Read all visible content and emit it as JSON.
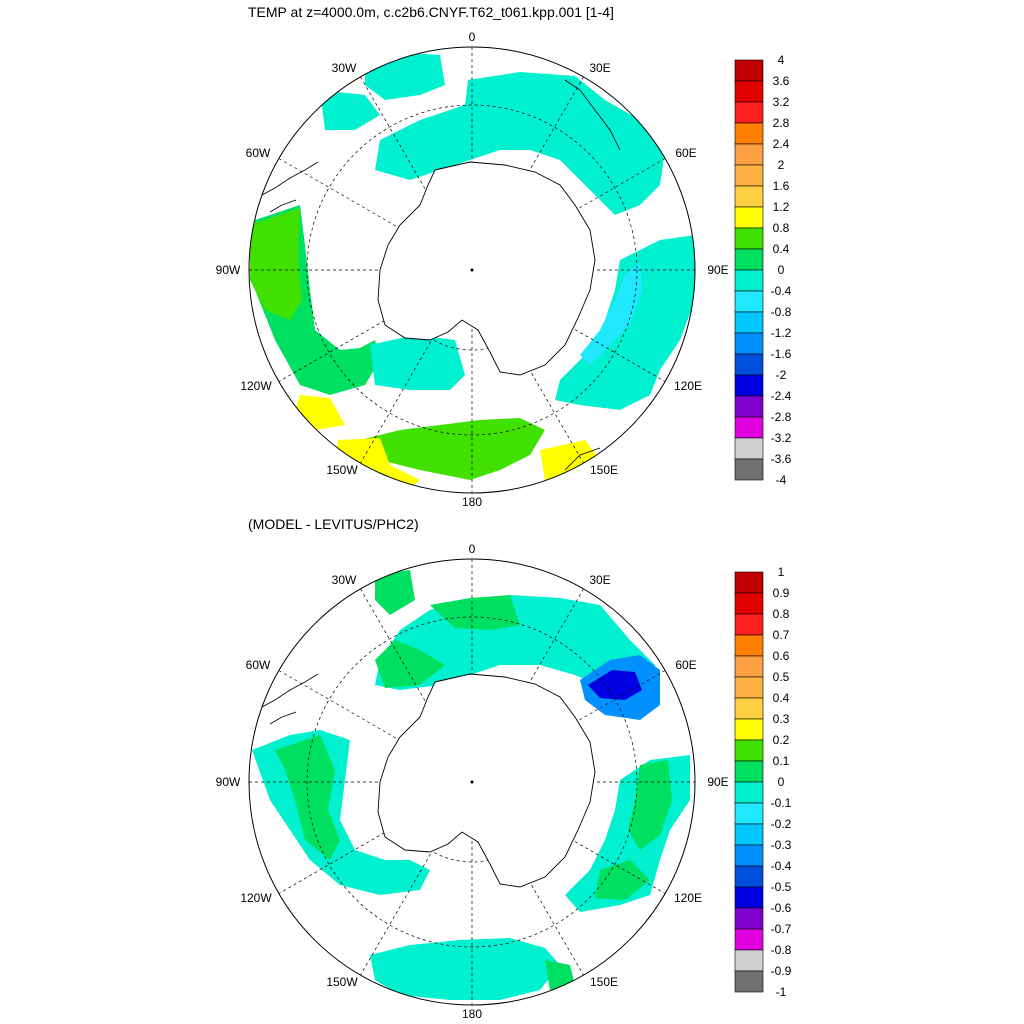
{
  "titles": {
    "top": "TEMP at z=4000.0m, c.c2b6.CNYF.T62_t061.kpp.001 [1-4]",
    "bottom": "(MODEL - LEVITUS/PHC2)"
  },
  "map_labels": [
    "0",
    "30E",
    "60E",
    "90E",
    "120E",
    "150E",
    "180",
    "150W",
    "120W",
    "90W",
    "60W",
    "30W"
  ],
  "colorbar_top": {
    "labels": [
      "4",
      "3.6",
      "3.2",
      "2.8",
      "2.4",
      "2",
      "1.6",
      "1.2",
      "0.8",
      "0.4",
      "0",
      "-0.4",
      "-0.8",
      "-1.2",
      "-1.6",
      "-2",
      "-2.4",
      "-2.8",
      "-3.2",
      "-3.6",
      "-4"
    ],
    "colors": [
      "#c00000",
      "#e00000",
      "#ff2020",
      "#ff8000",
      "#ffa040",
      "#ffb040",
      "#ffd040",
      "#ffff00",
      "#40e000",
      "#00e060",
      "#00f0d0",
      "#20e8ff",
      "#00c8ff",
      "#0090ff",
      "#0050e0",
      "#0000e0",
      "#8000d0",
      "#e000e0",
      "#d0d0d0",
      "#707070"
    ]
  },
  "colorbar_bottom": {
    "labels": [
      "1",
      "0.9",
      "0.8",
      "0.7",
      "0.6",
      "0.5",
      "0.4",
      "0.3",
      "0.2",
      "0.1",
      "0",
      "-0.1",
      "-0.2",
      "-0.3",
      "-0.4",
      "-0.5",
      "-0.6",
      "-0.7",
      "-0.8",
      "-0.9",
      "-1"
    ],
    "colors": [
      "#c00000",
      "#e00000",
      "#ff2020",
      "#ff8000",
      "#ffa040",
      "#ffb040",
      "#ffd040",
      "#ffff00",
      "#40e000",
      "#00e060",
      "#00f0d0",
      "#20e8ff",
      "#00c8ff",
      "#0090ff",
      "#0050e0",
      "#0000e0",
      "#8000d0",
      "#e000e0",
      "#d0d0d0",
      "#707070"
    ]
  }
}
